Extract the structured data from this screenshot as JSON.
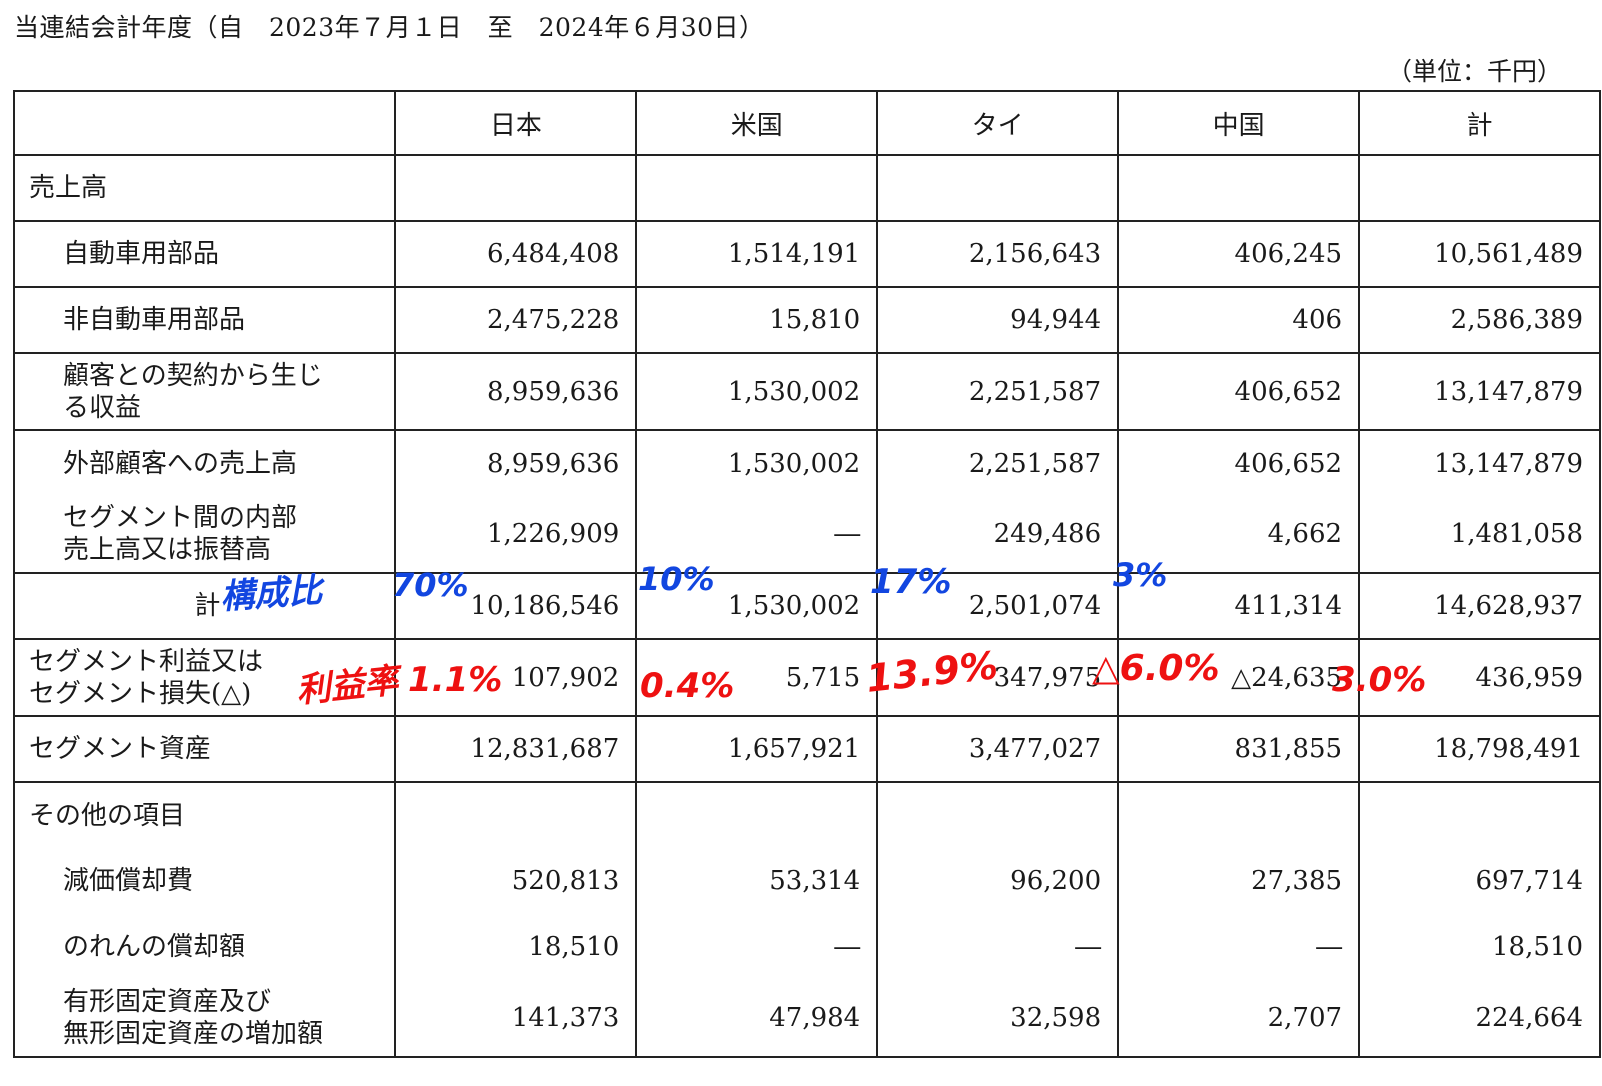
{
  "period_title": "当連結会計年度（自　2023年７月１日　至　2024年６月30日）",
  "unit_label": "（単位：千円）",
  "columns": [
    "日本",
    "米国",
    "タイ",
    "中国",
    "計"
  ],
  "rows": {
    "sales_header": {
      "label": "売上高"
    },
    "auto_parts": {
      "label": "自動車用部品",
      "values": [
        "6,484,408",
        "1,514,191",
        "2,156,643",
        "406,245",
        "10,561,489"
      ]
    },
    "non_auto_parts": {
      "label": "非自動車用部品",
      "values": [
        "2,475,228",
        "15,810",
        "94,944",
        "406",
        "2,586,389"
      ]
    },
    "contract_revenue": {
      "label_line1": "顧客との契約から生じ",
      "label_line2": "る収益",
      "values": [
        "8,959,636",
        "1,530,002",
        "2,251,587",
        "406,652",
        "13,147,879"
      ]
    },
    "external_sales": {
      "label": "外部顧客への売上高",
      "values": [
        "8,959,636",
        "1,530,002",
        "2,251,587",
        "406,652",
        "13,147,879"
      ]
    },
    "intersegment": {
      "label_line1": "セグメント間の内部",
      "label_line2": "売上高又は振替高",
      "values": [
        "1,226,909",
        "―",
        "249,486",
        "4,662",
        "1,481,058"
      ]
    },
    "subtotal": {
      "label": "計",
      "values": [
        "10,186,546",
        "1,530,002",
        "2,501,074",
        "411,314",
        "14,628,937"
      ]
    },
    "segment_profit": {
      "label_line1": "セグメント利益又は",
      "label_line2": "セグメント損失(△)",
      "values": [
        "107,902",
        "5,715",
        "347,975",
        "△24,635",
        "436,959"
      ]
    },
    "segment_assets": {
      "label": "セグメント資産",
      "values": [
        "12,831,687",
        "1,657,921",
        "3,477,027",
        "831,855",
        "18,798,491"
      ]
    },
    "other_header": {
      "label": "その他の項目"
    },
    "depreciation": {
      "label": "減価償却費",
      "values": [
        "520,813",
        "53,314",
        "96,200",
        "27,385",
        "697,714"
      ]
    },
    "goodwill_amortization": {
      "label": "のれんの償却額",
      "values": [
        "18,510",
        "―",
        "―",
        "―",
        "18,510"
      ]
    },
    "capex": {
      "label_line1": "有形固定資産及び",
      "label_line2": "無形固定資産の増加額",
      "values": [
        "141,373",
        "47,984",
        "32,598",
        "2,707",
        "224,664"
      ]
    }
  },
  "annotations": {
    "composition_label": "構成比",
    "composition": [
      "70%",
      "10%",
      "17%",
      "3%"
    ],
    "margin_label": "利益率",
    "margins": [
      "1.1%",
      "0.4%",
      "13.9%",
      "△6.0%",
      "3.0%"
    ],
    "colors": {
      "composition": "#1246e0",
      "margin": "#ee1111"
    }
  }
}
